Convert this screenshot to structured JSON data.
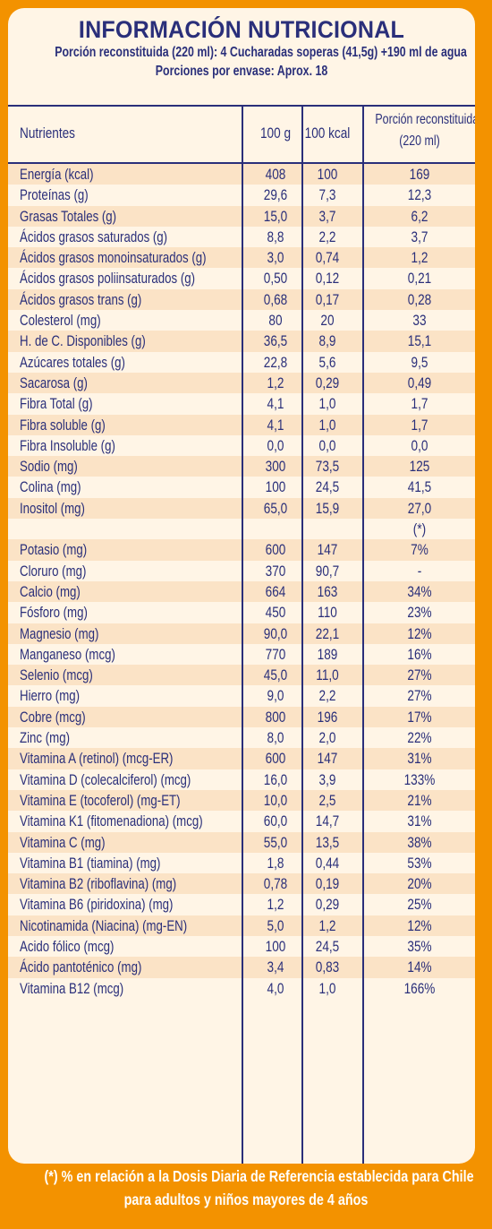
{
  "header": {
    "title": "INFORMACIÓN NUTRICIONAL",
    "portion": "Porción reconstituida (220 ml): 4 Cucharadas soperas (41,5g) +190 ml de agua",
    "servings": "Porciones por envase: Aprox. 18"
  },
  "columns": {
    "nutrient": "Nutrientes",
    "per100g": "100 g",
    "per100kcal": "100 kcal",
    "portion_line1": "Porción reconstituida",
    "portion_line2": "(220 ml)"
  },
  "rows": [
    {
      "n": "Energía (kcal)",
      "g": "408",
      "k": "100",
      "p": "169"
    },
    {
      "n": "Proteínas (g)",
      "g": "29,6",
      "k": "7,3",
      "p": "12,3"
    },
    {
      "n": "Grasas Totales (g)",
      "g": "15,0",
      "k": "3,7",
      "p": "6,2"
    },
    {
      "n": "Ácidos grasos saturados (g)",
      "g": "8,8",
      "k": "2,2",
      "p": "3,7"
    },
    {
      "n": "Ácidos grasos monoinsaturados (g)",
      "g": "3,0",
      "k": "0,74",
      "p": "1,2"
    },
    {
      "n": "Ácidos grasos poliinsaturados (g)",
      "g": "0,50",
      "k": "0,12",
      "p": "0,21"
    },
    {
      "n": "Ácidos grasos trans (g)",
      "g": "0,68",
      "k": "0,17",
      "p": "0,28"
    },
    {
      "n": "Colesterol (mg)",
      "g": "80",
      "k": "20",
      "p": "33"
    },
    {
      "n": "H. de C. Disponibles (g)",
      "g": "36,5",
      "k": "8,9",
      "p": "15,1"
    },
    {
      "n": "Azúcares totales (g)",
      "g": "22,8",
      "k": "5,6",
      "p": "9,5"
    },
    {
      "n": "Sacarosa (g)",
      "g": "1,2",
      "k": "0,29",
      "p": "0,49"
    },
    {
      "n": "Fibra Total (g)",
      "g": "4,1",
      "k": "1,0",
      "p": "1,7"
    },
    {
      "n": "Fibra soluble (g)",
      "g": "4,1",
      "k": "1,0",
      "p": "1,7"
    },
    {
      "n": "Fibra Insoluble (g)",
      "g": "0,0",
      "k": "0,0",
      "p": "0,0"
    },
    {
      "n": "Sodio (mg)",
      "g": "300",
      "k": "73,5",
      "p": "125"
    },
    {
      "n": "Colina (mg)",
      "g": "100",
      "k": "24,5",
      "p": "41,5"
    },
    {
      "n": "Inositol (mg)",
      "g": "65,0",
      "k": "15,9",
      "p": "27,0"
    },
    {
      "n": "",
      "g": "",
      "k": "",
      "p": "(*)"
    },
    {
      "n": "Potasio (mg)",
      "g": "600",
      "k": "147",
      "p": "7%"
    },
    {
      "n": "Cloruro (mg)",
      "g": "370",
      "k": "90,7",
      "p": "-"
    },
    {
      "n": "Calcio (mg)",
      "g": "664",
      "k": "163",
      "p": "34%"
    },
    {
      "n": "Fósforo (mg)",
      "g": "450",
      "k": "110",
      "p": "23%"
    },
    {
      "n": "Magnesio (mg)",
      "g": "90,0",
      "k": "22,1",
      "p": "12%"
    },
    {
      "n": "Manganeso (mcg)",
      "g": "770",
      "k": "189",
      "p": "16%"
    },
    {
      "n": "Selenio (mcg)",
      "g": "45,0",
      "k": "11,0",
      "p": "27%"
    },
    {
      "n": "Hierro (mg)",
      "g": "9,0",
      "k": "2,2",
      "p": "27%"
    },
    {
      "n": "Cobre (mcg)",
      "g": "800",
      "k": "196",
      "p": "17%"
    },
    {
      "n": "Zinc (mg)",
      "g": "8,0",
      "k": "2,0",
      "p": "22%"
    },
    {
      "n": "Vitamina A (retinol) (mcg-ER)",
      "g": "600",
      "k": "147",
      "p": "31%"
    },
    {
      "n": "Vitamina D (colecalciferol) (mcg)",
      "g": "16,0",
      "k": "3,9",
      "p": "133%"
    },
    {
      "n": "Vitamina E (tocoferol) (mg-ET)",
      "g": "10,0",
      "k": "2,5",
      "p": "21%"
    },
    {
      "n": "Vitamina K1 (fitomenadiona) (mcg)",
      "g": "60,0",
      "k": "14,7",
      "p": "31%"
    },
    {
      "n": "Vitamina C (mg)",
      "g": "55,0",
      "k": "13,5",
      "p": "38%"
    },
    {
      "n": "Vitamina B1 (tiamina) (mg)",
      "g": "1,8",
      "k": "0,44",
      "p": "53%"
    },
    {
      "n": "Vitamina B2 (riboflavina) (mg)",
      "g": "0,78",
      "k": "0,19",
      "p": "20%"
    },
    {
      "n": "Vitamina B6 (piridoxina) (mg)",
      "g": "1,2",
      "k": "0,29",
      "p": "25%"
    },
    {
      "n": "Nicotinamida (Niacina) (mg-EN)",
      "g": "5,0",
      "k": "1,2",
      "p": "12%"
    },
    {
      "n": "Acido fólico (mcg)",
      "g": "100",
      "k": "24,5",
      "p": "35%"
    },
    {
      "n": "Ácido pantoténico (mg)",
      "g": "3,4",
      "k": "0,83",
      "p": "14%"
    },
    {
      "n": "Vitamina B12 (mcg)",
      "g": "4,0",
      "k": "1,0",
      "p": "166%"
    }
  ],
  "footnote": {
    "line1": "(*) % en relación a la Dosis Diaria de Referencia establecida para Chile",
    "line2": "para adultos y niños mayores de 4 años"
  },
  "colors": {
    "frame": "#f39200",
    "panel": "#fff5e6",
    "stripe": "#fbe3c6",
    "text": "#2a2f7a"
  }
}
